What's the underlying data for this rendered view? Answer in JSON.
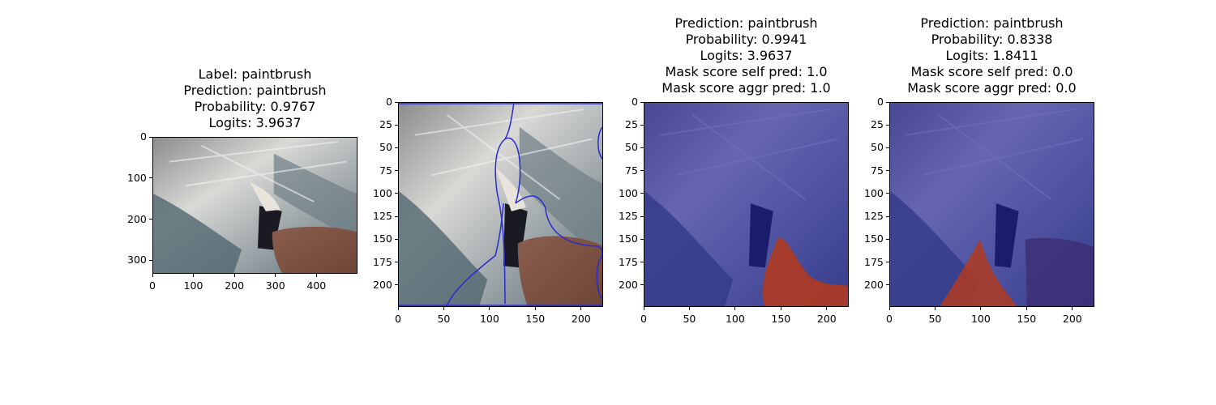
{
  "panels": [
    {
      "id": "original",
      "title_lines": [
        "Label: paintbrush",
        "Prediction: paintbrush",
        "Probability: 0.9767",
        "Logits: 3.9637"
      ],
      "xticks": [
        "0",
        "100",
        "200",
        "300",
        "400"
      ],
      "yticks": [
        "0",
        "100",
        "200",
        "300"
      ]
    },
    {
      "id": "segmentation",
      "title_lines": [],
      "xticks": [
        "0",
        "50",
        "100",
        "150",
        "200"
      ],
      "yticks": [
        "0",
        "25",
        "50",
        "75",
        "100",
        "125",
        "150",
        "175",
        "200"
      ]
    },
    {
      "id": "mask-self",
      "title_lines": [
        "Prediction: paintbrush",
        "Probability: 0.9941",
        "Logits: 3.9637",
        "Mask score self pred: 1.0",
        "Mask score aggr pred: 1.0"
      ],
      "xticks": [
        "0",
        "50",
        "100",
        "150",
        "200"
      ],
      "yticks": [
        "0",
        "25",
        "50",
        "75",
        "100",
        "125",
        "150",
        "175",
        "200"
      ]
    },
    {
      "id": "mask-aggr",
      "title_lines": [
        "Prediction: paintbrush",
        "Probability: 0.8338",
        "Logits: 1.8411",
        "Mask score self pred: 0.0",
        "Mask score aggr pred: 0.0"
      ],
      "xticks": [
        "0",
        "50",
        "100",
        "150",
        "200"
      ],
      "yticks": [
        "0",
        "25",
        "50",
        "75",
        "100",
        "125",
        "150",
        "175",
        "200"
      ]
    }
  ],
  "colors": {
    "overlay_blue": "#1e1e9a",
    "overlay_red": "#b03a20",
    "contour": "#2a2ad0"
  }
}
